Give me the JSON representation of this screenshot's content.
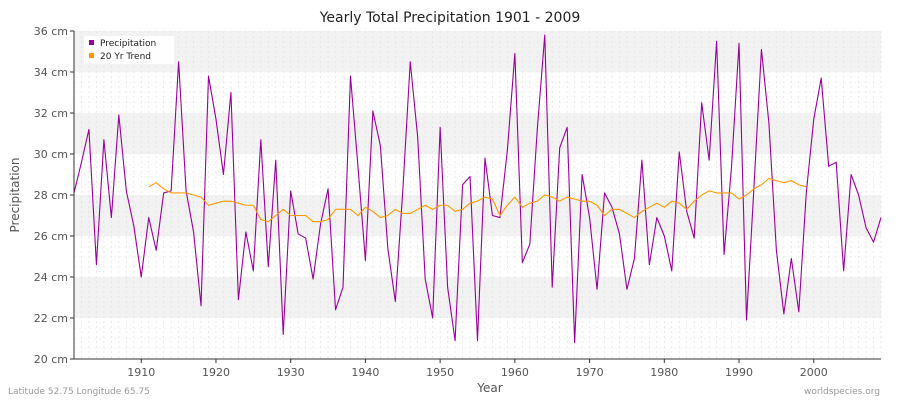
{
  "chart_data": {
    "type": "line",
    "title": "Yearly Total Precipitation 1901 - 2009",
    "xlabel": "Year",
    "ylabel": "Precipitation",
    "xlim": [
      1901,
      2009
    ],
    "ylim": [
      20,
      36
    ],
    "x_ticks": [
      1910,
      1920,
      1930,
      1940,
      1950,
      1960,
      1970,
      1980,
      1990,
      2000
    ],
    "y_ticks": [
      20,
      22,
      24,
      26,
      28,
      30,
      32,
      34,
      36
    ],
    "y_tick_labels": [
      "20 cm",
      "22 cm",
      "24 cm",
      "26 cm",
      "28 cm",
      "30 cm",
      "32 cm",
      "34 cm",
      "36 cm"
    ],
    "grid": true,
    "legend_position": "top-left",
    "series": [
      {
        "name": "Precipitation",
        "color": "#990099",
        "x": [
          1901,
          1902,
          1903,
          1904,
          1905,
          1906,
          1907,
          1908,
          1909,
          1910,
          1911,
          1912,
          1913,
          1914,
          1915,
          1916,
          1917,
          1918,
          1919,
          1920,
          1921,
          1922,
          1923,
          1924,
          1925,
          1926,
          1927,
          1928,
          1929,
          1930,
          1931,
          1932,
          1933,
          1934,
          1935,
          1936,
          1937,
          1938,
          1939,
          1940,
          1941,
          1942,
          1943,
          1944,
          1945,
          1946,
          1947,
          1948,
          1949,
          1950,
          1951,
          1952,
          1953,
          1954,
          1955,
          1956,
          1957,
          1958,
          1959,
          1960,
          1961,
          1962,
          1963,
          1964,
          1965,
          1966,
          1967,
          1968,
          1969,
          1970,
          1971,
          1972,
          1973,
          1974,
          1975,
          1976,
          1977,
          1978,
          1979,
          1980,
          1981,
          1982,
          1983,
          1984,
          1985,
          1986,
          1987,
          1988,
          1989,
          1990,
          1991,
          1992,
          1993,
          1994,
          1995,
          1996,
          1997,
          1998,
          1999,
          2000,
          2001,
          2002,
          2003,
          2004,
          2005,
          2006,
          2007,
          2008,
          2009
        ],
        "values": [
          28.1,
          29.6,
          31.2,
          24.6,
          30.7,
          26.9,
          31.9,
          28.2,
          26.5,
          24.0,
          26.9,
          25.3,
          28.1,
          28.2,
          34.5,
          28.2,
          26.2,
          22.6,
          33.8,
          31.7,
          29.0,
          33.0,
          22.9,
          26.2,
          24.3,
          30.7,
          24.5,
          29.7,
          21.2,
          28.2,
          26.1,
          25.9,
          23.9,
          26.6,
          28.3,
          22.4,
          23.5,
          33.8,
          29.4,
          24.8,
          32.1,
          30.4,
          25.4,
          22.8,
          28.2,
          34.5,
          30.8,
          23.9,
          22.0,
          31.3,
          23.5,
          20.9,
          28.5,
          28.9,
          20.9,
          29.8,
          27.0,
          26.9,
          30.2,
          34.9,
          24.7,
          25.6,
          31.2,
          35.8,
          23.5,
          30.3,
          31.3,
          20.8,
          29.0,
          26.9,
          23.4,
          28.1,
          27.4,
          26.1,
          23.4,
          24.9,
          29.7,
          24.6,
          26.9,
          26.0,
          24.3,
          30.1,
          27.2,
          25.9,
          32.5,
          29.7,
          35.5,
          25.1,
          29.4,
          35.4,
          21.9,
          28.4,
          35.1,
          31.5,
          25.3,
          22.2,
          24.9,
          22.3,
          28.1,
          31.7,
          33.7,
          29.4,
          29.6,
          24.3,
          29.0,
          28.0,
          26.4,
          25.7,
          26.9
        ]
      },
      {
        "name": "20 Yr Trend",
        "color": "#ff9900",
        "x": [
          1911,
          1912,
          1913,
          1914,
          1915,
          1916,
          1917,
          1918,
          1919,
          1920,
          1921,
          1922,
          1923,
          1924,
          1925,
          1926,
          1927,
          1928,
          1929,
          1930,
          1931,
          1932,
          1933,
          1934,
          1935,
          1936,
          1937,
          1938,
          1939,
          1940,
          1941,
          1942,
          1943,
          1944,
          1945,
          1946,
          1947,
          1948,
          1949,
          1950,
          1951,
          1952,
          1953,
          1954,
          1955,
          1956,
          1957,
          1958,
          1959,
          1960,
          1961,
          1962,
          1963,
          1964,
          1965,
          1966,
          1967,
          1968,
          1969,
          1970,
          1971,
          1972,
          1973,
          1974,
          1975,
          1976,
          1977,
          1978,
          1979,
          1980,
          1981,
          1982,
          1983,
          1984,
          1985,
          1986,
          1987,
          1988,
          1989,
          1990,
          1991,
          1992,
          1993,
          1994,
          1995,
          1996,
          1997,
          1998,
          1999
        ],
        "values": [
          28.4,
          28.6,
          28.3,
          28.1,
          28.1,
          28.1,
          28.0,
          27.9,
          27.5,
          27.6,
          27.7,
          27.7,
          27.6,
          27.5,
          27.5,
          26.8,
          26.7,
          27.0,
          27.3,
          27.0,
          27.0,
          27.0,
          26.7,
          26.7,
          26.8,
          27.3,
          27.3,
          27.3,
          27.0,
          27.4,
          27.2,
          26.9,
          27.0,
          27.3,
          27.1,
          27.1,
          27.3,
          27.5,
          27.3,
          27.5,
          27.5,
          27.2,
          27.3,
          27.6,
          27.7,
          27.9,
          27.8,
          27.0,
          27.5,
          27.9,
          27.4,
          27.6,
          27.7,
          28.0,
          27.9,
          27.7,
          27.9,
          27.8,
          27.7,
          27.7,
          27.5,
          27.0,
          27.3,
          27.3,
          27.1,
          26.9,
          27.2,
          27.4,
          27.6,
          27.4,
          27.7,
          27.6,
          27.3,
          27.7,
          28.0,
          28.2,
          28.1,
          28.1,
          28.1,
          27.8,
          28.0,
          28.3,
          28.5,
          28.8,
          28.7,
          28.6,
          28.7,
          28.5,
          28.4
        ]
      }
    ]
  },
  "footer": {
    "left": "Latitude 52.75 Longitude 65.75",
    "right": "worldspecies.org"
  }
}
